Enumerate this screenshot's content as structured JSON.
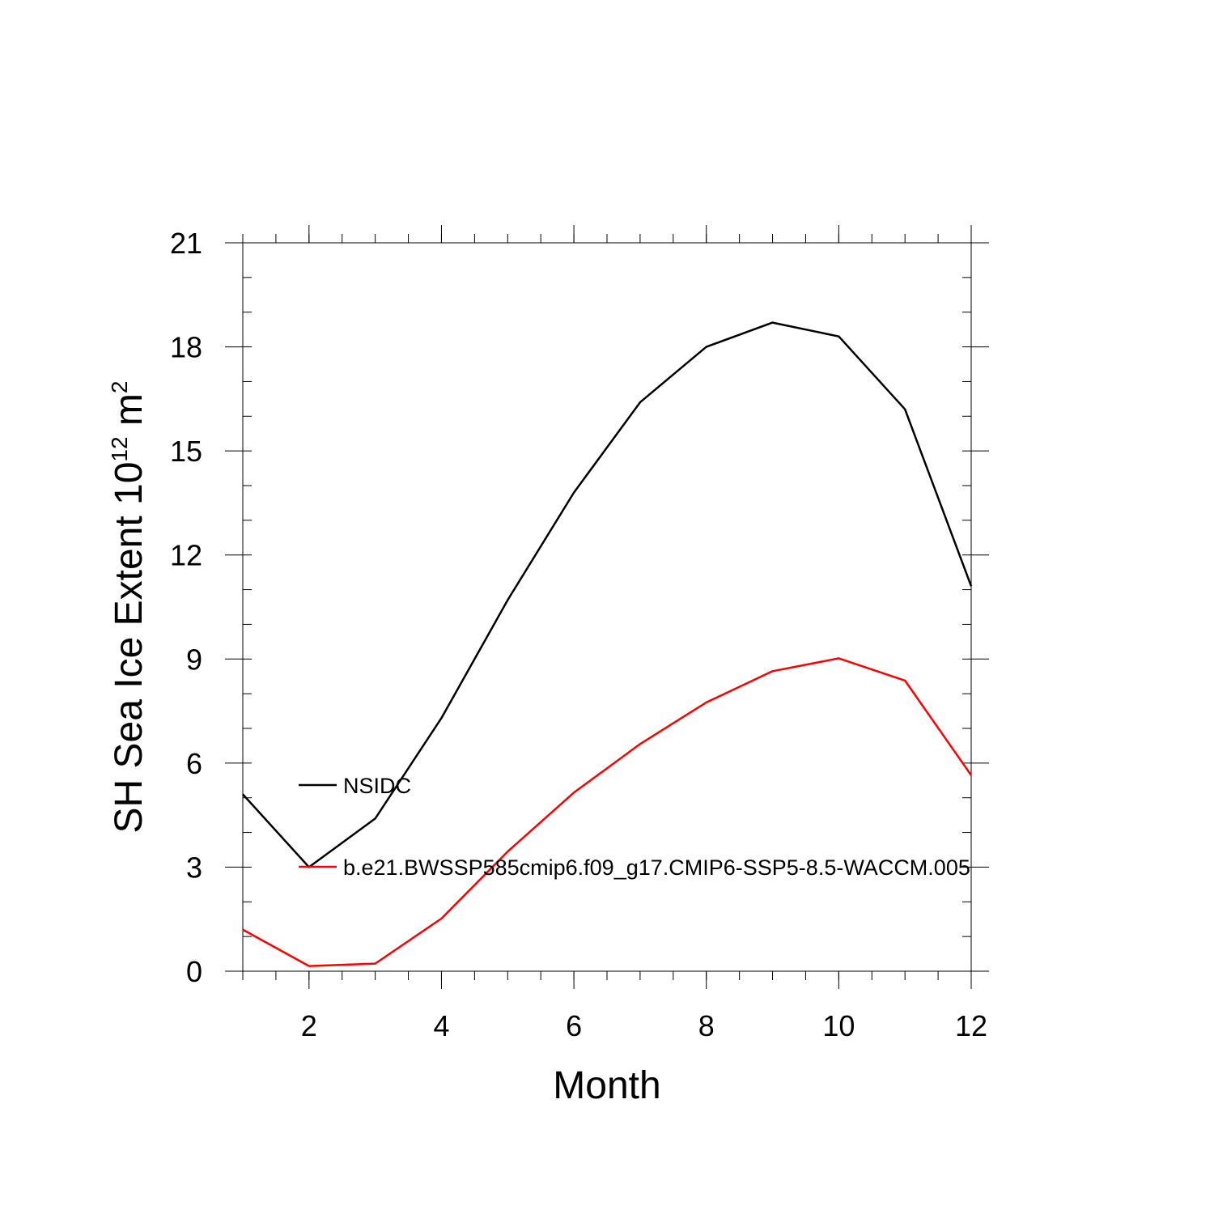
{
  "chart_data": {
    "type": "line",
    "xlabel": "Month",
    "ylabel": {
      "main": "SH Sea Ice Extent 10",
      "superscript_1": "12",
      "unit": " m",
      "superscript_2": "2"
    },
    "xlim": [
      1,
      12
    ],
    "ylim": [
      0,
      21
    ],
    "xticks": [
      2,
      4,
      6,
      8,
      10,
      12
    ],
    "yticks": [
      0,
      3,
      6,
      9,
      12,
      15,
      18,
      21
    ],
    "x_minor_step": 0.5,
    "y_minor_step": 1,
    "grid": false,
    "legend_placement": "left, inside plot",
    "x": [
      1,
      2,
      3,
      4,
      5,
      6,
      7,
      8,
      9,
      10,
      11,
      12
    ],
    "series": [
      {
        "name": "NSIDC",
        "color": "#000000",
        "values": [
          5.1,
          3.0,
          4.4,
          7.3,
          10.7,
          13.8,
          16.4,
          18.0,
          18.7,
          18.3,
          16.2,
          11.1
        ]
      },
      {
        "name": "b.e21.BWSSP585cmip6.f09_g17.CMIP6-SSP5-8.5-WACCM.005",
        "color": "#ff0000",
        "values": [
          1.2,
          0.15,
          0.22,
          1.52,
          3.45,
          5.15,
          6.55,
          7.75,
          8.65,
          9.02,
          8.38,
          5.65
        ]
      }
    ]
  }
}
